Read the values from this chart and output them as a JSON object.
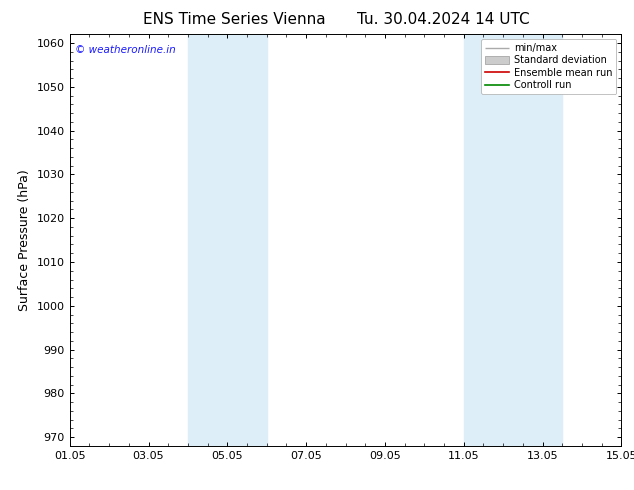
{
  "title": "ENS Time Series Vienna",
  "date_label": "Tu. 30.04.2024 14 UTC",
  "ylabel": "Surface Pressure (hPa)",
  "ylim": [
    968,
    1062
  ],
  "yticks": [
    970,
    980,
    990,
    1000,
    1010,
    1020,
    1030,
    1040,
    1050,
    1060
  ],
  "xtick_labels": [
    "01.05",
    "03.05",
    "05.05",
    "07.05",
    "09.05",
    "11.05",
    "13.05",
    "15.05"
  ],
  "xtick_positions": [
    0,
    2,
    4,
    6,
    8,
    10,
    12,
    14
  ],
  "shaded_bands": [
    {
      "x_start": 3.0,
      "x_end": 5.0
    },
    {
      "x_start": 10.0,
      "x_end": 12.5
    }
  ],
  "shaded_color": "#ddeef8",
  "watermark_text": "© weatheronline.in",
  "watermark_color": "#1a1aff",
  "legend_items": [
    {
      "label": "min/max",
      "color": "#aaaaaa",
      "lw": 1.0
    },
    {
      "label": "Standard deviation",
      "color": "#cccccc",
      "lw": 1.0
    },
    {
      "label": "Ensemble mean run",
      "color": "#cc0000",
      "lw": 1.2
    },
    {
      "label": "Controll run",
      "color": "#008800",
      "lw": 1.2
    }
  ],
  "background_color": "#ffffff",
  "title_fontsize": 11,
  "label_fontsize": 9,
  "tick_fontsize": 8
}
